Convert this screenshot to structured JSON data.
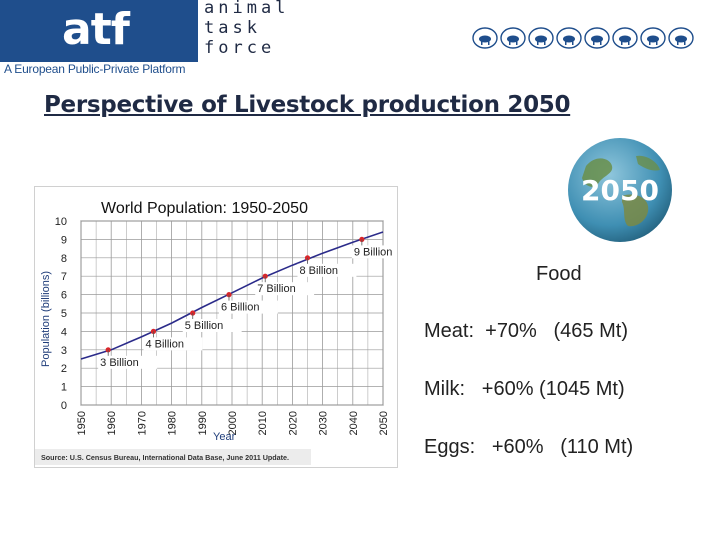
{
  "header": {
    "logo_text": "atf",
    "logo_words": [
      "animal",
      "task",
      "force"
    ],
    "tagline": "A European Public-Private Platform",
    "animal_icons": [
      "pig-icon",
      "cow-icon",
      "chicken-icon",
      "sheep-icon",
      "horse-icon",
      "fish-icon",
      "rabbit-icon",
      "goat-icon"
    ]
  },
  "slide": {
    "title": "Perspective of Livestock production 2050"
  },
  "globe": {
    "label": "2050"
  },
  "food": {
    "heading": "Food",
    "items": [
      {
        "text": "Meat:  +70%   (465 Mt)"
      },
      {
        "text": "Milk:   +60% (1045 Mt)"
      },
      {
        "text": "Eggs:   +60%   (110 Mt)"
      }
    ]
  },
  "colors": {
    "brand_blue": "#1f4e8c",
    "line": "#2b2b8a",
    "point": "#d9262a"
  },
  "chart_data": {
    "type": "line",
    "title": "World Population: 1950-2050",
    "xlabel": "Year",
    "ylabel": "Population (billions)",
    "source": "Source: U.S. Census Bureau, International Data Base, June 2011 Update.",
    "xlim": [
      1950,
      2050
    ],
    "ylim": [
      0,
      10
    ],
    "x_ticks": [
      "1950",
      "1960",
      "1970",
      "1980",
      "1990",
      "2000",
      "2010",
      "2020",
      "2030",
      "2040",
      "2050"
    ],
    "y_ticks": [
      "0",
      "1",
      "2",
      "3",
      "4",
      "5",
      "6",
      "7",
      "8",
      "9",
      "10"
    ],
    "grid": true,
    "series": [
      {
        "x": [
          1950,
          1960,
          1970,
          1980,
          1990,
          2000,
          2010,
          2020,
          2030,
          2040,
          2050
        ],
        "y": [
          2.5,
          3.0,
          3.7,
          4.45,
          5.3,
          6.1,
          6.9,
          7.6,
          8.25,
          8.85,
          9.4
        ]
      }
    ],
    "milestones": [
      {
        "x": 1959,
        "y": 3,
        "label": "3 Billion"
      },
      {
        "x": 1974,
        "y": 4,
        "label": "4 Billion"
      },
      {
        "x": 1987,
        "y": 5,
        "label": "5 Billion"
      },
      {
        "x": 1999,
        "y": 6,
        "label": "6 Billion"
      },
      {
        "x": 2011,
        "y": 7,
        "label": "7 Billion"
      },
      {
        "x": 2025,
        "y": 8,
        "label": "8 Billion"
      },
      {
        "x": 2043,
        "y": 9,
        "label": "9 Billion"
      }
    ]
  }
}
